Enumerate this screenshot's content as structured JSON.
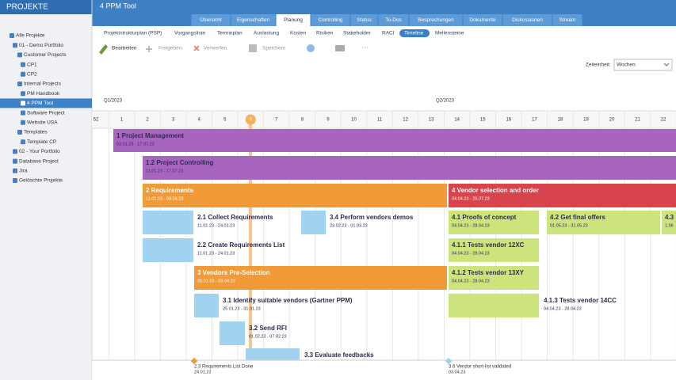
{
  "sidebar": {
    "title": "PROJEKTE",
    "items": [
      "Alle Projekte",
      "01 - Demo Portfolio",
      "Customer Projects",
      "CP1",
      "CP2",
      "Internal Projects",
      "PM Handbook",
      "4 PPM Tool",
      "Software Project",
      "Website USA",
      "Templates",
      "Template CP",
      "02 - Your Portfolio",
      "Database Project",
      "Jira",
      "Gelöschte Projekte"
    ]
  },
  "header": {
    "title": "4 PPM Tool",
    "tabs": [
      "Übersicht",
      "Eigenschaften",
      "Planung",
      "Controlling",
      "Status",
      "To-Dos",
      "Besprechungen",
      "Dokumente",
      "Diskussionen",
      "Stream"
    ]
  },
  "subtabs": [
    "Projektstrukturplan (PSP)",
    "Vorgangsliste",
    "Terminplan",
    "Auslastung",
    "Kosten",
    "Risiken",
    "Stakeholder",
    "RACI",
    "Timeline",
    "Meilensteine"
  ],
  "toolbar": [
    "Bearbeiten",
    "Freigeben",
    "Verwerfen",
    "Speichern"
  ],
  "time_unit": {
    "label": "Zeiteinheit:",
    "value": "Wochen"
  },
  "timeline": {
    "quarters": [
      "Q1/2023",
      "Q2/2023"
    ],
    "weeks": [
      "52",
      "1",
      "2",
      "3",
      "4",
      "5",
      "6",
      "7",
      "8",
      "9",
      "10",
      "11",
      "12",
      "13",
      "14",
      "15",
      "16",
      "17",
      "18",
      "19",
      "20",
      "21",
      "22"
    ],
    "bars": [
      {
        "title": "1 Project Management",
        "dates": "03.01.23 - 17.07.23",
        "color": "#a765c0",
        "text_color": "#2c2c52"
      },
      {
        "title": "1.2 Project Controlling",
        "dates": "11.01.23 - 17.07.23",
        "color": "#a765c0",
        "text_color": "#2c2c52"
      },
      {
        "title": "2 Requirements",
        "dates": "11.01.23 - 03.04.23",
        "color": "#f09a38",
        "text_color": "#ffffff"
      },
      {
        "title": "4 Vendor selection and order",
        "dates": "04.04.23 - 25.07.23",
        "color": "#d9434b",
        "text_color": "#ffffff"
      },
      {
        "title": "2.1 Collect Requirements",
        "dates": "11.01.23 - 24.01.23",
        "color": "#9fd3f0",
        "text_color": "#2c2c52"
      },
      {
        "title": "3.4 Perform vendors demos",
        "dates": "23.02.23 - 01.03.23",
        "color": "#9fd3f0",
        "text_color": "#2c2c52"
      },
      {
        "title": "4.1 Proofs of concept",
        "dates": "04.04.23 - 28.04.23",
        "color": "#cde47c",
        "text_color": "#2c2c52"
      },
      {
        "title": "4.2 Get final offers",
        "dates": "01.05.23 - 31.05.23",
        "color": "#cde47c",
        "text_color": "#2c2c52"
      },
      {
        "title": "4.3",
        "dates": "1.06",
        "color": "#cde47c",
        "text_color": "#2c2c52"
      },
      {
        "title": "2.2 Create Requirements List",
        "dates": "11.01.23 - 24.01.23",
        "color": "#9fd3f0",
        "text_color": "#2c2c52"
      },
      {
        "title": "4.1.1 Tests vendor 12XC",
        "dates": "04.04.23 - 28.04.23",
        "color": "#cde47c",
        "text_color": "#2c2c52"
      },
      {
        "title": "3 Vendors Pre-Selection",
        "dates": "25.01.23 - 03.04.23",
        "color": "#f09a38",
        "text_color": "#ffffff"
      },
      {
        "title": "4.1.2 Tests vendor 13XY",
        "dates": "04.04.23 - 28.04.23",
        "color": "#cde47c",
        "text_color": "#2c2c52"
      },
      {
        "title": "3.1 Identify suitable vendors (Gartner PPM)",
        "dates": "25.01.23 - 31.01.23",
        "color": "#9fd3f0",
        "text_color": "#2c2c52"
      },
      {
        "title": "4.1.3 Tests vendor 14CC",
        "dates": "04.04.23 - 28.04.23",
        "color": "#cde47c",
        "text_color": "#2c2c52"
      },
      {
        "title": "3.2 Send RFI",
        "dates": "01.02.23 - 07.02.23",
        "color": "#9fd3f0",
        "text_color": "#2c2c52"
      },
      {
        "title": "3.3 Evaluate feedbacks",
        "color": "#9fd3f0",
        "text_color": "#2c2c52"
      }
    ],
    "milestones": [
      {
        "title": "2.3 Requirements List Done",
        "date": "24.01.23",
        "color": "#f09a38"
      },
      {
        "title": "3.6 Vendor short-list validated",
        "date": "03.04.23",
        "color": "#9fd3f0"
      }
    ]
  }
}
